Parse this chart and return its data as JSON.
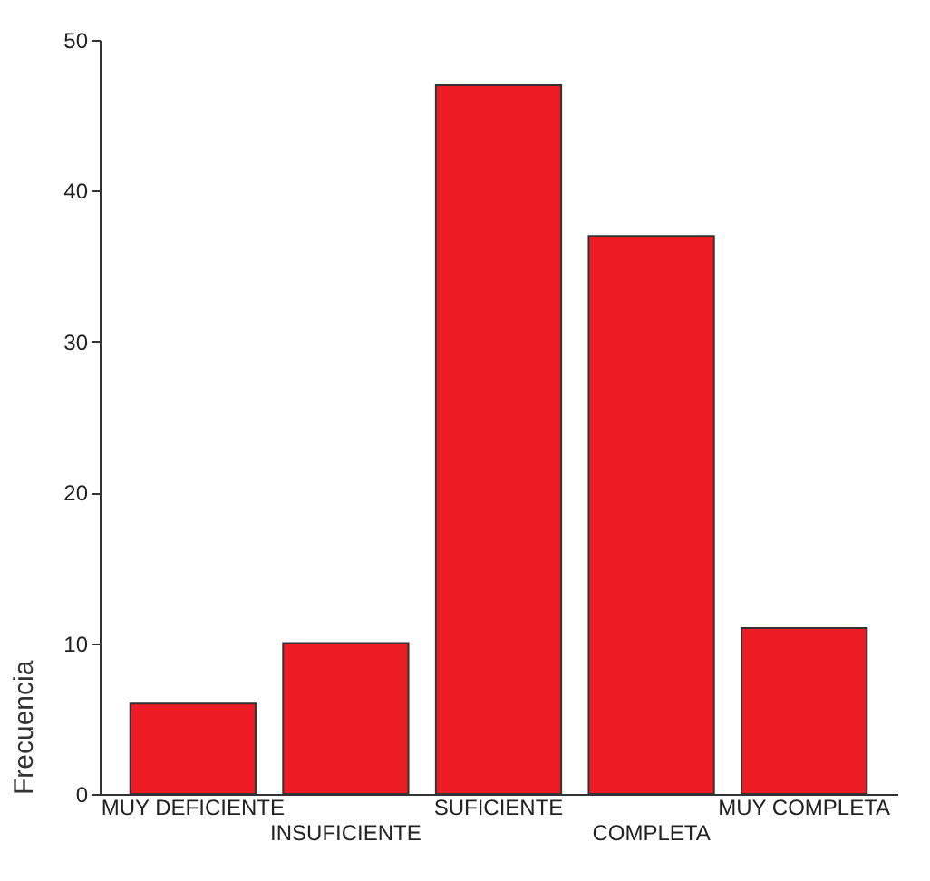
{
  "chart_data": {
    "type": "bar",
    "ylabel": "Frecuencia",
    "categories": [
      "MUY DEFICIENTE",
      "INSUFICIENTE",
      "SUFICIENTE",
      "COMPLETA",
      "MUY COMPLETA"
    ],
    "values": [
      6,
      10,
      47,
      37,
      11
    ],
    "color": "#ed1c24",
    "ylim": [
      0,
      50
    ],
    "yticks": [
      0,
      10,
      20,
      30,
      40,
      50
    ],
    "grid": false
  }
}
